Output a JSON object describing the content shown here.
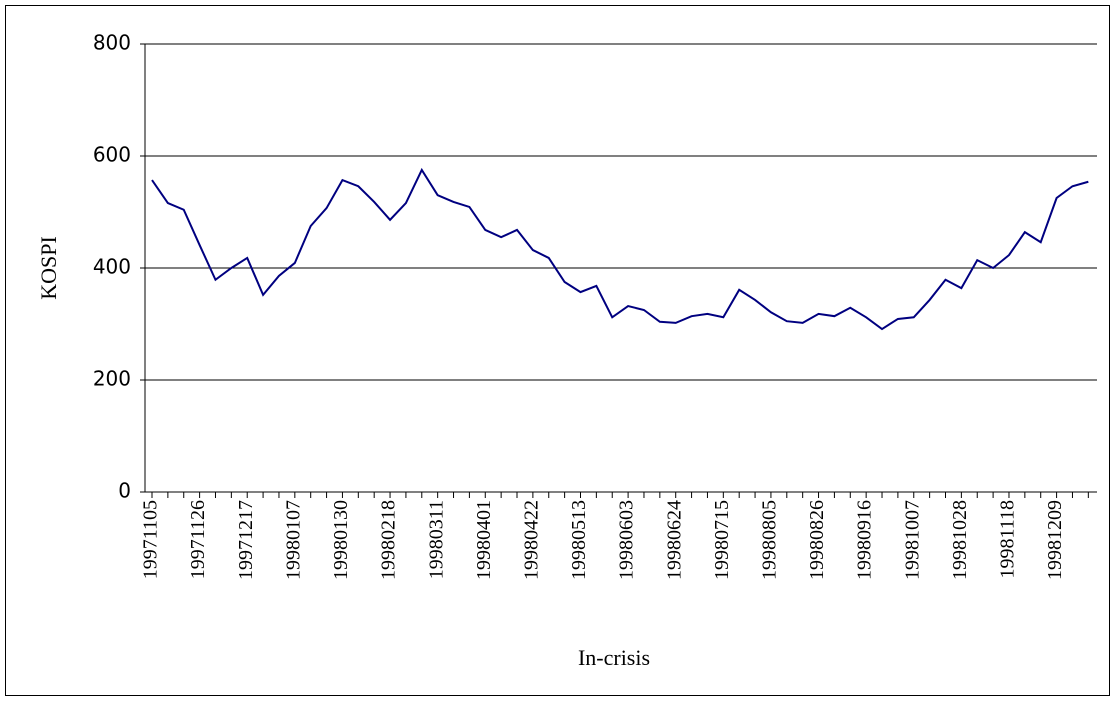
{
  "chart_data": {
    "type": "line",
    "xlabel": "In-crisis",
    "ylabel": "KOSPI",
    "categories": [
      "19971105",
      null,
      null,
      "19971126",
      null,
      null,
      "19971217",
      null,
      null,
      "19980107",
      null,
      null,
      "19980130",
      null,
      null,
      "19980218",
      null,
      null,
      "19980311",
      null,
      null,
      "19980401",
      null,
      null,
      "19980422",
      null,
      null,
      "19980513",
      null,
      null,
      "19980603",
      null,
      null,
      "19980624",
      null,
      null,
      "19980715",
      null,
      null,
      "19980805",
      null,
      null,
      "19980826",
      null,
      null,
      "19980916",
      null,
      null,
      "19981007",
      null,
      null,
      "19981028",
      null,
      null,
      "19981118",
      null,
      null,
      "19981209",
      null,
      null
    ],
    "series": [
      {
        "name": "KOSPI",
        "color": "#000080",
        "values": [
          557,
          516,
          504,
          441,
          379,
          400,
          418,
          352,
          386,
          409,
          475,
          507,
          557,
          546,
          518,
          486,
          516,
          575,
          530,
          518,
          509,
          468,
          455,
          468,
          432,
          418,
          375,
          357,
          368,
          312,
          332,
          325,
          304,
          302,
          314,
          318,
          312,
          361,
          343,
          321,
          305,
          302,
          318,
          314,
          329,
          312,
          291,
          309,
          312,
          343,
          379,
          364,
          414,
          400,
          423,
          464,
          446,
          525,
          546,
          554
        ]
      }
    ],
    "ylim": [
      0,
      800
    ],
    "yticks": [
      0,
      200,
      400,
      600,
      800
    ],
    "grid": true
  }
}
